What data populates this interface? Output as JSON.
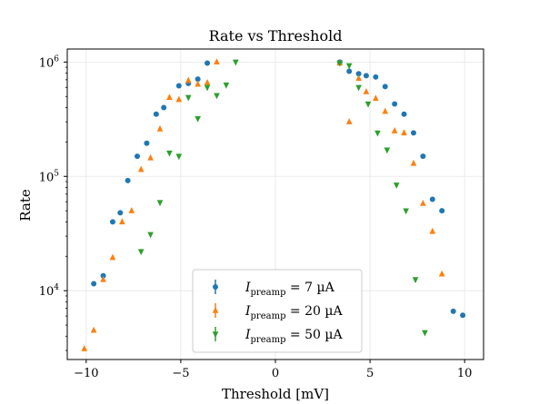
{
  "chart_data": {
    "type": "scatter",
    "title": "Rate vs Threshold",
    "xlabel": "Threshold [mV]",
    "ylabel": "Rate",
    "xlim": [
      -11,
      11
    ],
    "ylim": [
      2500,
      1300000
    ],
    "yscale": "log",
    "grid": true,
    "legend_position": "bottom-center",
    "x_ticks": [
      -10,
      -5,
      0,
      5,
      10
    ],
    "x_tick_labels": [
      "−10",
      "−5",
      "0",
      "5",
      "10"
    ],
    "y_ticks": [
      10000,
      100000,
      1000000
    ],
    "y_tick_labels": [
      {
        "base": "10",
        "exp": "4"
      },
      {
        "base": "10",
        "exp": "5"
      },
      {
        "base": "10",
        "exp": "6"
      }
    ],
    "series": [
      {
        "name": "7 µA",
        "label_main": "I",
        "label_sub": "preamp",
        "label_rest": " = 7 µA",
        "color": "#1f77b4",
        "marker": "circle",
        "points": [
          [
            -9.6,
            11500
          ],
          [
            -9.1,
            13500
          ],
          [
            -8.6,
            40000
          ],
          [
            -8.2,
            48000
          ],
          [
            -7.8,
            92000
          ],
          [
            -7.3,
            150000
          ],
          [
            -6.8,
            195000
          ],
          [
            -6.3,
            350000
          ],
          [
            -5.9,
            400000
          ],
          [
            -5.1,
            620000
          ],
          [
            -4.6,
            650000
          ],
          [
            -4.1,
            710000
          ],
          [
            -3.6,
            980000
          ],
          [
            3.4,
            1000000
          ],
          [
            3.9,
            830000
          ],
          [
            4.4,
            790000
          ],
          [
            4.8,
            760000
          ],
          [
            5.3,
            740000
          ],
          [
            5.8,
            610000
          ],
          [
            6.3,
            430000
          ],
          [
            6.8,
            350000
          ],
          [
            7.3,
            240000
          ],
          [
            7.8,
            150000
          ],
          [
            8.3,
            63000
          ],
          [
            8.8,
            50000
          ],
          [
            9.4,
            6600
          ],
          [
            9.9,
            6100
          ]
        ]
      },
      {
        "name": "20 µA",
        "label_main": "I",
        "label_sub": "preamp",
        "label_rest": " = 20 µA",
        "color": "#ff7f0e",
        "marker": "triangle-up",
        "points": [
          [
            -10.1,
            3100
          ],
          [
            -9.6,
            4500
          ],
          [
            -9.1,
            12500
          ],
          [
            -8.6,
            19500
          ],
          [
            -8.1,
            40000
          ],
          [
            -7.6,
            50000
          ],
          [
            -7.1,
            115000
          ],
          [
            -6.6,
            145000
          ],
          [
            -6.1,
            260000
          ],
          [
            -5.6,
            490000
          ],
          [
            -5.1,
            470000
          ],
          [
            -4.6,
            690000
          ],
          [
            -4.1,
            640000
          ],
          [
            -3.6,
            660000
          ],
          [
            -3.1,
            1000000
          ],
          [
            3.4,
            980000
          ],
          [
            3.9,
            300000
          ],
          [
            4.4,
            720000
          ],
          [
            4.8,
            550000
          ],
          [
            5.3,
            480000
          ],
          [
            5.8,
            370000
          ],
          [
            6.3,
            250000
          ],
          [
            6.8,
            240000
          ],
          [
            7.3,
            130000
          ],
          [
            7.8,
            58000
          ],
          [
            8.3,
            33000
          ],
          [
            8.8,
            14000
          ]
        ]
      },
      {
        "name": "50 µA",
        "label_main": "I",
        "label_sub": "preamp",
        "label_rest": " = 50 µA",
        "color": "#2ca02c",
        "marker": "triangle-down",
        "points": [
          [
            -7.1,
            22000
          ],
          [
            -6.6,
            31000
          ],
          [
            -6.1,
            59000
          ],
          [
            -5.6,
            160000
          ],
          [
            -5.1,
            150000
          ],
          [
            -4.6,
            490000
          ],
          [
            -4.1,
            320000
          ],
          [
            -3.6,
            600000
          ],
          [
            -3.1,
            510000
          ],
          [
            -2.6,
            630000
          ],
          [
            -2.1,
            1000000
          ],
          [
            3.4,
            980000
          ],
          [
            3.9,
            930000
          ],
          [
            4.4,
            600000
          ],
          [
            4.9,
            430000
          ],
          [
            5.4,
            240000
          ],
          [
            5.9,
            170000
          ],
          [
            6.4,
            84000
          ],
          [
            6.9,
            50000
          ],
          [
            7.4,
            12500
          ],
          [
            7.9,
            4300
          ]
        ]
      }
    ]
  }
}
